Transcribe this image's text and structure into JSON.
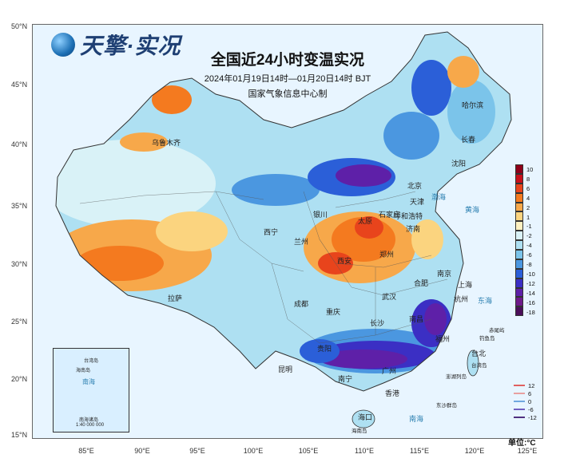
{
  "logo": {
    "text": "天擎·实况",
    "icon": "globe-icon"
  },
  "title": {
    "main": "全国近24小时变温实况",
    "period": "2024年01月19日14时—01月20日14时 BJT",
    "producer": "国家气象信息中心制"
  },
  "axes": {
    "lat": [
      "50°N",
      "45°N",
      "40°N",
      "35°N",
      "30°N",
      "25°N",
      "20°N",
      "15°N"
    ],
    "lon": [
      "85°E",
      "90°E",
      "95°E",
      "100°E",
      "105°E",
      "110°E",
      "115°E",
      "120°E",
      "125°E"
    ]
  },
  "legend": {
    "labels": [
      "10",
      "8",
      "6",
      "4",
      "2",
      "1",
      "-1",
      "-2",
      "-4",
      "-6",
      "-8",
      "-10",
      "-12",
      "-14",
      "-16",
      "-18"
    ],
    "colors": [
      "#8e0019",
      "#c8101a",
      "#e8441c",
      "#f47a1f",
      "#f7a84a",
      "#fbd47f",
      "#fdf0c0",
      "#d9f2f7",
      "#aee0f2",
      "#7bc4ea",
      "#4b97e0",
      "#2b5fd8",
      "#3b2fc4",
      "#5e20a8",
      "#6e1a8a",
      "#4a0e5a"
    ]
  },
  "line_legend": [
    {
      "label": "12",
      "color": "#e06060"
    },
    {
      "label": "6",
      "color": "#e8a0a0"
    },
    {
      "label": "0",
      "color": "#70a8e0"
    },
    {
      "label": "-6",
      "color": "#7060c0"
    },
    {
      "label": "-12",
      "color": "#503080"
    }
  ],
  "unit": "单位:°C",
  "cities": {
    "haerbin": "哈尔滨",
    "changchun": "长春",
    "shenyang": "沈阳",
    "beijing": "北京",
    "tianjin": "天津",
    "shijiazhuang": "石家庄",
    "taiyuan": "太原",
    "jinan": "济南",
    "zhengzhou": "郑州",
    "xian": "西安",
    "lanzhou": "兰州",
    "xining": "西宁",
    "yinchuan": "银川",
    "chengdu": "成都",
    "chongqing": "重庆",
    "wuhan": "武汉",
    "hefei": "合肥",
    "nanjing": "南京",
    "shanghai": "上海",
    "hangzhou": "杭州",
    "nanchang": "南昌",
    "changsha": "长沙",
    "guiyang": "贵阳",
    "kunming": "昆明",
    "nanning": "南宁",
    "guangzhou": "广州",
    "fuzhou": "福州",
    "taibei": "台北",
    "lasa": "拉萨",
    "wulumuqi": "乌鲁木齐",
    "haikou": "海口",
    "xianggang": "香港",
    "hohhot": "呼和浩特"
  },
  "seas": {
    "bohai": "渤海",
    "huanghai": "黄海",
    "donghai": "东海",
    "nanhai": "南海"
  },
  "islands": {
    "taiwan": "台湾岛",
    "chiwei": "赤尾屿",
    "diaoyu": "钓鱼岛",
    "penghu": "澎湖列岛",
    "dongsha": "东沙群岛",
    "hainan": "海南岛"
  },
  "inset": {
    "taiwan": "台湾岛",
    "hainan": "海南岛",
    "nanhai": "南海",
    "islands": "南海诸岛",
    "scale": "1:40 000 000"
  }
}
